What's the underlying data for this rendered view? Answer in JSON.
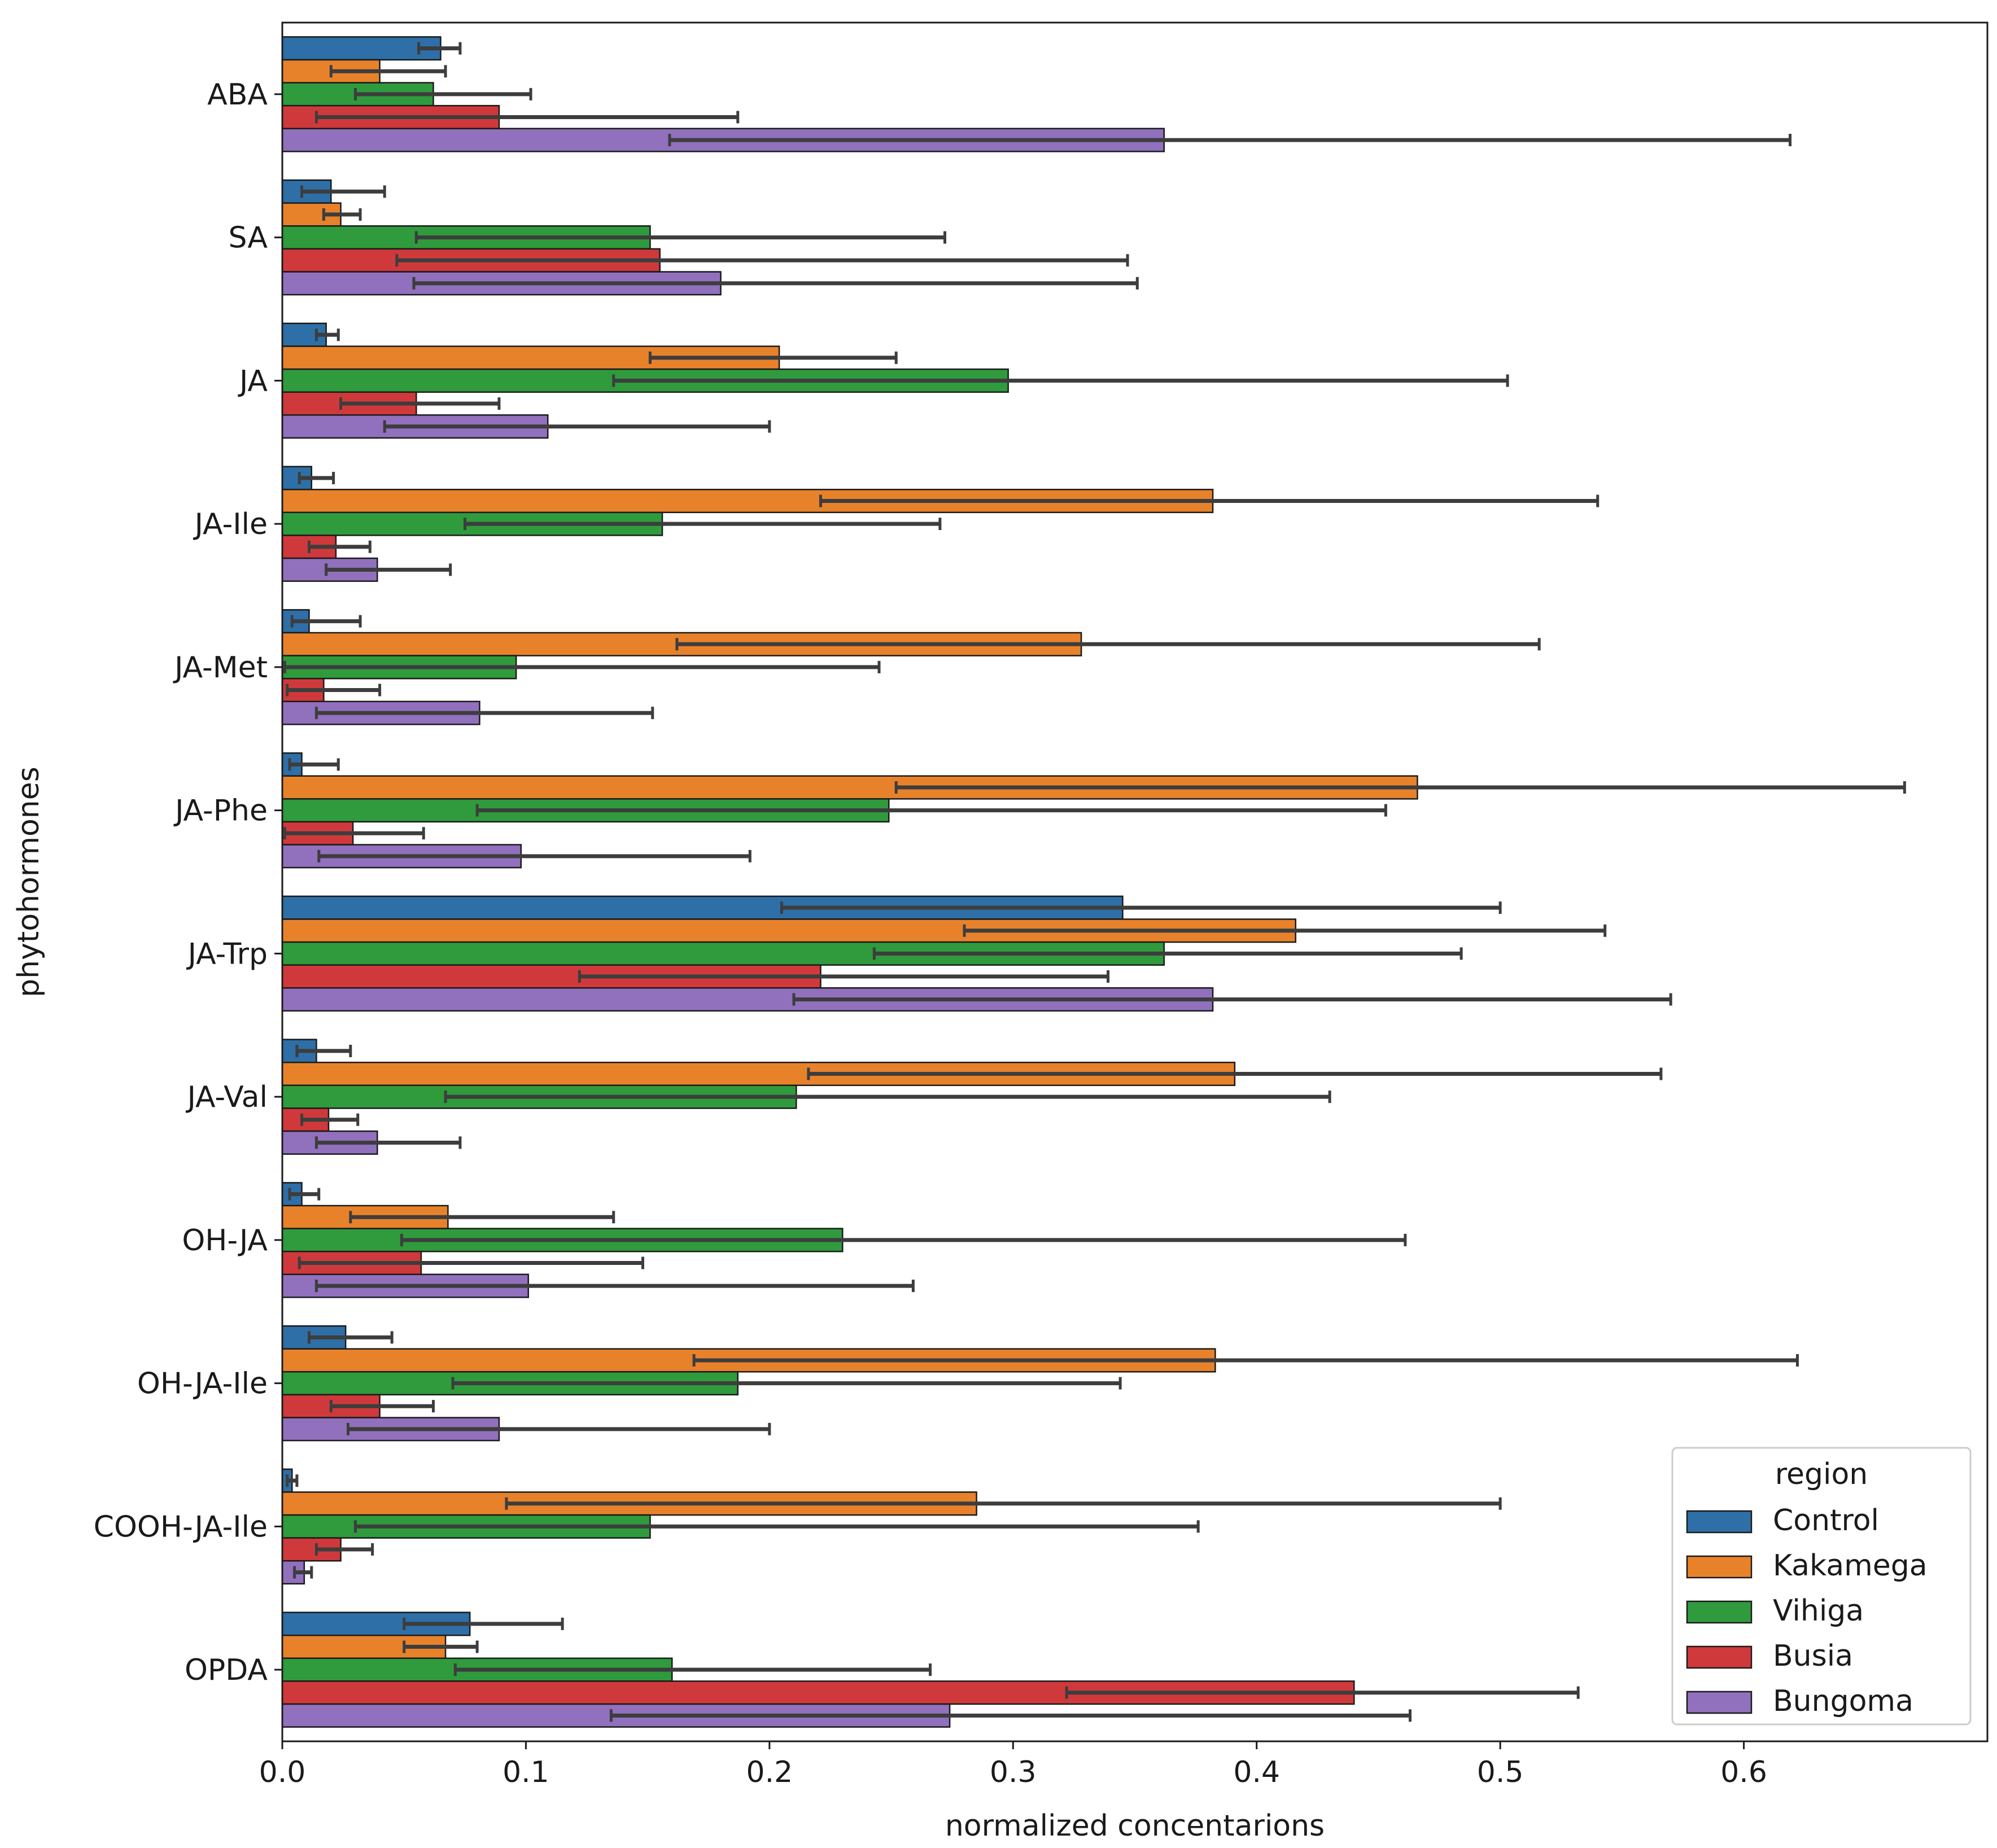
{
  "chart_data": {
    "type": "bar",
    "orientation": "horizontal",
    "title": "",
    "xlabel": "normalized concentarions",
    "ylabel": "phytohormones",
    "xlim": [
      0,
      0.7
    ],
    "xticks": [
      0.0,
      0.1,
      0.2,
      0.3,
      0.4,
      0.5,
      0.6
    ],
    "xtick_labels": [
      "0.0",
      "0.1",
      "0.2",
      "0.3",
      "0.4",
      "0.5",
      "0.6"
    ],
    "grid": false,
    "legend": {
      "title": "region",
      "placement": "lower-right"
    },
    "categories": [
      "ABA",
      "SA",
      "JA",
      "JA-Ile",
      "JA-Met",
      "JA-Phe",
      "JA-Trp",
      "JA-Val",
      "OH-JA",
      "OH-JA-Ile",
      "COOH-JA-Ile",
      "OPDA"
    ],
    "series": [
      {
        "name": "Control",
        "color": "#2e6fa7",
        "values": [
          0.065,
          0.02,
          0.018,
          0.012,
          0.011,
          0.008,
          0.345,
          0.014,
          0.008,
          0.026,
          0.004,
          0.077
        ],
        "err_low": [
          0.056,
          0.008,
          0.014,
          0.007,
          0.004,
          0.003,
          0.205,
          0.006,
          0.003,
          0.011,
          0.002,
          0.05
        ],
        "err_high": [
          0.073,
          0.042,
          0.023,
          0.021,
          0.032,
          0.023,
          0.5,
          0.028,
          0.015,
          0.045,
          0.006,
          0.115
        ]
      },
      {
        "name": "Kakamega",
        "color": "#e8822a",
        "values": [
          0.04,
          0.024,
          0.204,
          0.382,
          0.328,
          0.466,
          0.416,
          0.391,
          0.068,
          0.383,
          0.285,
          0.067
        ],
        "err_low": [
          0.02,
          0.017,
          0.151,
          0.221,
          0.162,
          0.252,
          0.28,
          0.216,
          0.028,
          0.169,
          0.092,
          0.05
        ],
        "err_high": [
          0.067,
          0.032,
          0.252,
          0.54,
          0.516,
          0.666,
          0.543,
          0.566,
          0.136,
          0.622,
          0.5,
          0.08
        ]
      },
      {
        "name": "Vihiga",
        "color": "#2f9b3c",
        "values": [
          0.062,
          0.151,
          0.298,
          0.156,
          0.096,
          0.249,
          0.362,
          0.211,
          0.23,
          0.187,
          0.151,
          0.16
        ],
        "err_low": [
          0.03,
          0.055,
          0.136,
          0.075,
          0.001,
          0.08,
          0.243,
          0.067,
          0.049,
          0.07,
          0.03,
          0.071
        ],
        "err_high": [
          0.102,
          0.272,
          0.503,
          0.27,
          0.245,
          0.453,
          0.484,
          0.43,
          0.461,
          0.344,
          0.376,
          0.266
        ]
      },
      {
        "name": "Busia",
        "color": "#d0393b",
        "values": [
          0.089,
          0.155,
          0.055,
          0.022,
          0.017,
          0.029,
          0.221,
          0.019,
          0.057,
          0.04,
          0.024,
          0.44
        ],
        "err_low": [
          0.014,
          0.047,
          0.024,
          0.011,
          0.002,
          0.001,
          0.122,
          0.008,
          0.007,
          0.02,
          0.014,
          0.322
        ],
        "err_high": [
          0.187,
          0.347,
          0.089,
          0.036,
          0.04,
          0.058,
          0.339,
          0.031,
          0.148,
          0.062,
          0.037,
          0.532
        ]
      },
      {
        "name": "Bungoma",
        "color": "#9170bd",
        "values": [
          0.362,
          0.18,
          0.109,
          0.039,
          0.081,
          0.098,
          0.382,
          0.039,
          0.101,
          0.089,
          0.009,
          0.274
        ],
        "err_low": [
          0.159,
          0.054,
          0.042,
          0.018,
          0.014,
          0.015,
          0.21,
          0.014,
          0.014,
          0.027,
          0.005,
          0.135
        ],
        "err_high": [
          0.619,
          0.351,
          0.2,
          0.069,
          0.152,
          0.192,
          0.57,
          0.073,
          0.259,
          0.2,
          0.012,
          0.463
        ]
      }
    ]
  }
}
